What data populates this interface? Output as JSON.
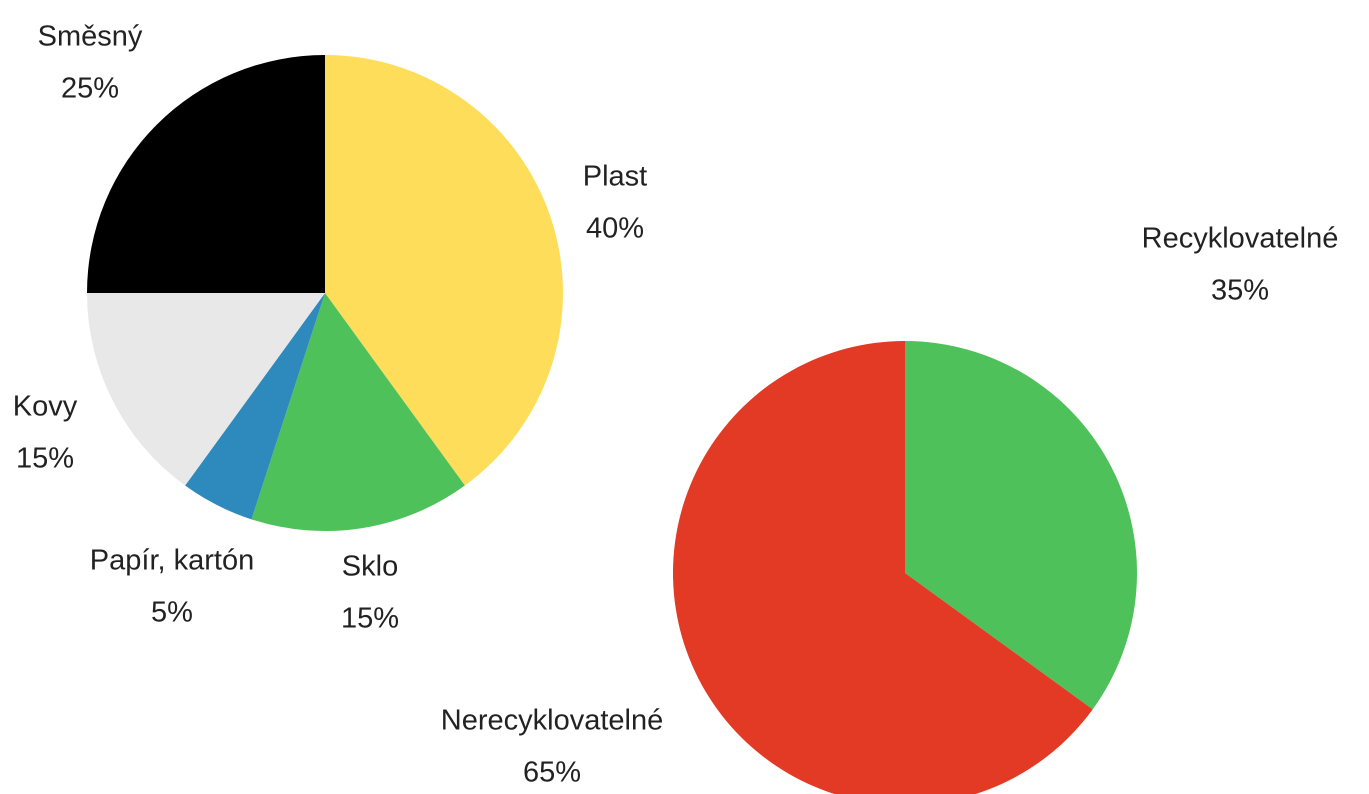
{
  "chart_data": [
    {
      "type": "pie",
      "categories": [
        "Plast",
        "Sklo",
        "Papír, kartón",
        "Kovy",
        "Směsný"
      ],
      "values": [
        40,
        15,
        5,
        15,
        25
      ],
      "value_labels": [
        "40%",
        "15%",
        "5%",
        "15%",
        "25%"
      ],
      "colors": [
        "#fedd5a",
        "#4fc15a",
        "#2e89bd",
        "#e8e8e8",
        "#000000"
      ]
    },
    {
      "type": "pie",
      "categories": [
        "Recyklovatelné",
        "Nerecyklovatelné"
      ],
      "values": [
        35,
        65
      ],
      "value_labels": [
        "35%",
        "65%"
      ],
      "colors": [
        "#4fc15a",
        "#e23a25"
      ]
    }
  ]
}
